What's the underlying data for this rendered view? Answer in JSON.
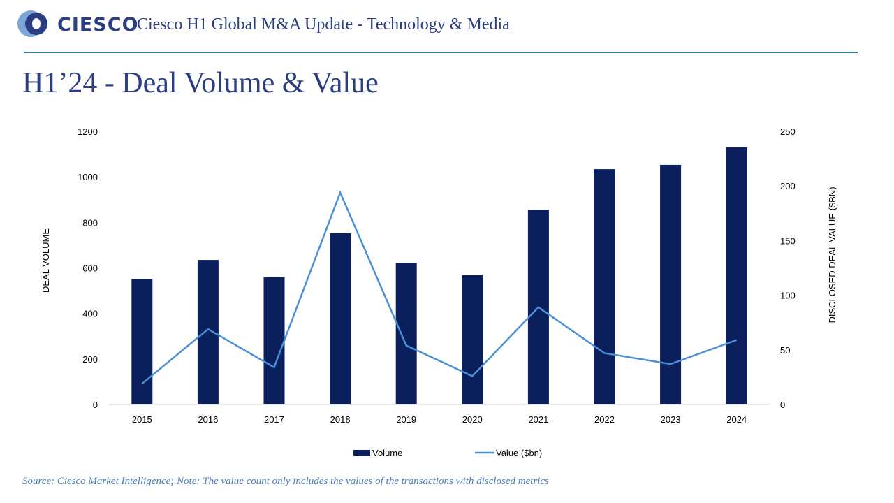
{
  "header": {
    "brand": "CIESCO",
    "subtitle": "Ciesco H1 Global M&A Update - Technology & Media"
  },
  "page_title": "H1’24 - Deal Volume & Value",
  "footer": {
    "source": "Source: Ciesco Market Intelligence; Note: The value count only includes the values of the transactions with disclosed metrics"
  },
  "colors": {
    "bar": "#0a1f5c",
    "line": "#4a90d9",
    "title": "#2c3e82"
  },
  "chart_data": {
    "type": "bar+line",
    "categories": [
      "2015",
      "2016",
      "2017",
      "2018",
      "2019",
      "2020",
      "2021",
      "2022",
      "2023",
      "2024"
    ],
    "series": [
      {
        "name": "Volume",
        "type": "bar",
        "axis": "left",
        "values": [
          552,
          635,
          559,
          752,
          623,
          568,
          856,
          1034,
          1053,
          1130
        ]
      },
      {
        "name": "Value ($bn)",
        "type": "line",
        "axis": "right",
        "values": [
          19,
          69,
          34,
          194,
          54,
          26,
          89,
          47,
          37,
          59
        ]
      }
    ],
    "ylabel": "DEAL VOLUME",
    "y2label": "DISCLOSED DEAL VALUE ($BN)",
    "ylim": [
      0,
      1200
    ],
    "yticks": [
      0,
      200,
      400,
      600,
      800,
      1000,
      1200
    ],
    "y2lim": [
      0,
      250
    ],
    "y2ticks": [
      0,
      50,
      100,
      150,
      200,
      250
    ],
    "grid": false,
    "legend": "bottom"
  }
}
